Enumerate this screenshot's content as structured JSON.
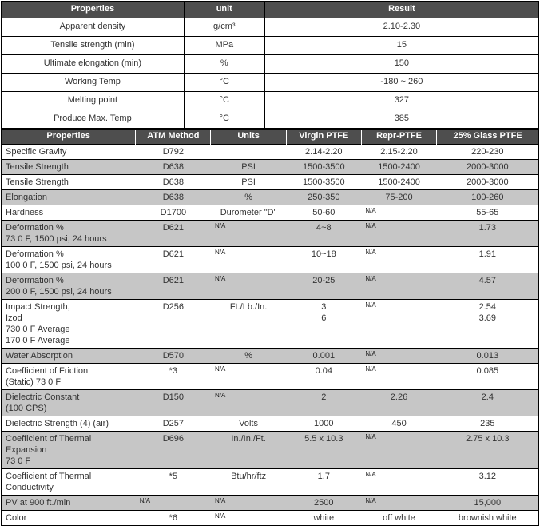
{
  "table1": {
    "headers": [
      "Properties",
      "unit",
      "Result"
    ],
    "rows": [
      [
        "Apparent density",
        "g/cm³",
        "2.10-2.30"
      ],
      [
        "Tensile strength (min)",
        "MPa",
        "15"
      ],
      [
        "Ultimate elongation (min)",
        "%",
        "150"
      ],
      [
        "Working Temp",
        "°C",
        "-180 ~ 260"
      ],
      [
        "Melting point",
        "°C",
        "327"
      ],
      [
        "Produce Max. Temp",
        "°C",
        "385"
      ]
    ]
  },
  "table2": {
    "headers": [
      "Properties",
      "ATM Method",
      "Units",
      "Virgin PTFE",
      "Repr-PTFE",
      "25% Glass PTFE"
    ],
    "rows": [
      {
        "shaded": false,
        "cells": [
          [
            "Specific Gravity"
          ],
          [
            "D792"
          ],
          [
            ""
          ],
          [
            "2.14-2.20"
          ],
          [
            "2.15-2.20"
          ],
          [
            "220-230"
          ]
        ]
      },
      {
        "shaded": true,
        "cells": [
          [
            "Tensile Strength"
          ],
          [
            "D638"
          ],
          [
            "PSI"
          ],
          [
            "1500-3500"
          ],
          [
            "1500-2400"
          ],
          [
            "2000-3000"
          ]
        ]
      },
      {
        "shaded": false,
        "cells": [
          [
            "Tensile Strength"
          ],
          [
            "D638"
          ],
          [
            "PSI"
          ],
          [
            "1500-3500"
          ],
          [
            "1500-2400"
          ],
          [
            "2000-3000"
          ]
        ]
      },
      {
        "shaded": true,
        "cells": [
          [
            "Elongation"
          ],
          [
            "D638"
          ],
          [
            "%"
          ],
          [
            "250-350"
          ],
          [
            "75-200"
          ],
          [
            "100-260"
          ]
        ]
      },
      {
        "shaded": false,
        "cells": [
          [
            "Hardness"
          ],
          [
            "D1700"
          ],
          [
            "Durometer \"D\""
          ],
          [
            "50-60"
          ],
          [
            "N/A"
          ],
          [
            "55-65"
          ]
        ]
      },
      {
        "shaded": true,
        "cells": [
          [
            "Deformation %",
            "73 0 F, 1500 psi, 24 hours"
          ],
          [
            "D621"
          ],
          [
            "N/A"
          ],
          [
            "4~8"
          ],
          [
            "N/A"
          ],
          [
            "1.73"
          ]
        ]
      },
      {
        "shaded": false,
        "cells": [
          [
            "Deformation %",
            "100 0 F, 1500 psi, 24 hours"
          ],
          [
            "D621"
          ],
          [
            "N/A"
          ],
          [
            "10~18"
          ],
          [
            "N/A"
          ],
          [
            "1.91"
          ]
        ]
      },
      {
        "shaded": true,
        "cells": [
          [
            "Deformation %",
            "200 0 F, 1500 psi, 24 hours"
          ],
          [
            "D621"
          ],
          [
            "N/A"
          ],
          [
            "20-25"
          ],
          [
            "N/A"
          ],
          [
            "4.57"
          ]
        ]
      },
      {
        "shaded": false,
        "cells": [
          [
            "Impact Strength,",
            "Izod",
            "730 0 F Average",
            "170 0 F Average"
          ],
          [
            "D256"
          ],
          [
            "Ft./Lb./In."
          ],
          [
            "3",
            "6"
          ],
          [
            "N/A"
          ],
          [
            "2.54",
            "3.69"
          ]
        ]
      },
      {
        "shaded": true,
        "cells": [
          [
            "Water Absorption"
          ],
          [
            "D570"
          ],
          [
            "%"
          ],
          [
            "0.001"
          ],
          [
            "N/A"
          ],
          [
            "0.013"
          ]
        ]
      },
      {
        "shaded": false,
        "cells": [
          [
            "Coefficient of Friction",
            "(Static) 73 0 F"
          ],
          [
            "*3"
          ],
          [
            "N/A"
          ],
          [
            "0.04"
          ],
          [
            "N/A"
          ],
          [
            "0.085"
          ]
        ]
      },
      {
        "shaded": true,
        "cells": [
          [
            "Dielectric Constant",
            "(100 CPS)"
          ],
          [
            "D150"
          ],
          [
            "N/A"
          ],
          [
            "2"
          ],
          [
            "2.26"
          ],
          [
            "2.4"
          ]
        ]
      },
      {
        "shaded": false,
        "cells": [
          [
            "Dielectric Strength (4) (air)"
          ],
          [
            "D257"
          ],
          [
            "Volts"
          ],
          [
            "1000"
          ],
          [
            "450"
          ],
          [
            "235"
          ]
        ]
      },
      {
        "shaded": true,
        "cells": [
          [
            "Coefficient of Thermal Expansion",
            "73 0 F"
          ],
          [
            "D696"
          ],
          [
            "In./In./Ft."
          ],
          [
            "5.5 x 10.3"
          ],
          [
            "N/A"
          ],
          [
            "2.75 x 10.3"
          ]
        ]
      },
      {
        "shaded": false,
        "cells": [
          [
            "Coefficient of Thermal Conductivity"
          ],
          [
            "*5"
          ],
          [
            "Btu/hr/ftz"
          ],
          [
            "1.7"
          ],
          [
            "N/A"
          ],
          [
            "3.12"
          ]
        ]
      },
      {
        "shaded": true,
        "cells": [
          [
            "PV at 900 ft./min"
          ],
          [
            "N/A"
          ],
          [
            "N/A"
          ],
          [
            "2500"
          ],
          [
            "N/A"
          ],
          [
            "15,000"
          ]
        ]
      },
      {
        "shaded": false,
        "cells": [
          [
            "Color"
          ],
          [
            "*6"
          ],
          [
            "N/A"
          ],
          [
            "white"
          ],
          [
            "off white"
          ],
          [
            "brownish white"
          ]
        ]
      }
    ]
  }
}
